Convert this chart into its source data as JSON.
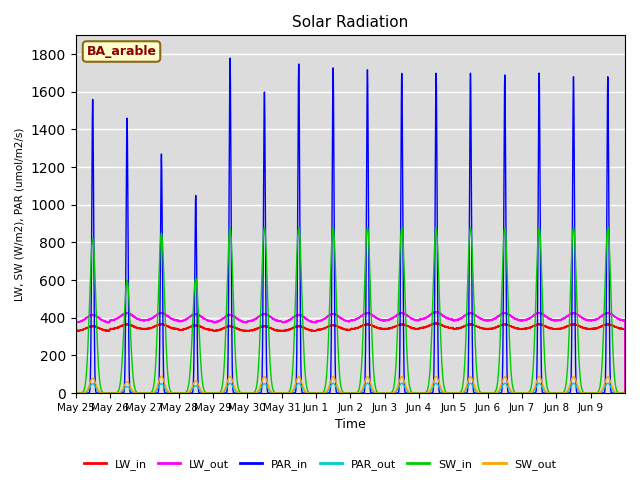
{
  "title": "Solar Radiation",
  "ylabel": "LW, SW (W/m2), PAR (umol/m2/s)",
  "xlabel": "Time",
  "annotation": "BA_arable",
  "annotation_color": "#8B0000",
  "annotation_bg": "#FFFFCC",
  "annotation_edge": "#8B6914",
  "ylim": [
    0,
    1900
  ],
  "yticks": [
    0,
    200,
    400,
    600,
    800,
    1000,
    1200,
    1400,
    1600,
    1800
  ],
  "n_days": 16,
  "series": {
    "LW_in": {
      "color": "#FF0000",
      "lw": 1.0
    },
    "LW_out": {
      "color": "#FF00FF",
      "lw": 1.0
    },
    "PAR_in": {
      "color": "#0000FF",
      "lw": 1.0
    },
    "PAR_out": {
      "color": "#00CCCC",
      "lw": 1.0
    },
    "SW_in": {
      "color": "#00CC00",
      "lw": 1.0
    },
    "SW_out": {
      "color": "#FFA500",
      "lw": 1.0
    }
  },
  "legend_order": [
    "LW_in",
    "LW_out",
    "PAR_in",
    "PAR_out",
    "SW_in",
    "SW_out"
  ],
  "xtick_labels": [
    "May 25",
    "May 26",
    "May 27",
    "May 28",
    "May 29",
    "May 30",
    "May 31",
    "Jun 1",
    "Jun 2",
    "Jun 3",
    "Jun 4",
    "Jun 5",
    "Jun 6",
    "Jun 7",
    "Jun 8",
    "Jun 9"
  ],
  "background_color": "#DCDCDC",
  "grid_color": "#FFFFFF",
  "fig_bg": "#FFFFFF",
  "par_peaks": [
    1560,
    1460,
    1270,
    1050,
    1780,
    1600,
    1750,
    1730,
    1720,
    1700,
    1700,
    1700,
    1690,
    1700,
    1680,
    1680
  ],
  "sw_peaks": [
    820,
    600,
    850,
    610,
    880,
    880,
    880,
    880,
    880,
    880,
    880,
    880,
    880,
    880,
    880,
    880
  ],
  "sw_out_peaks": [
    80,
    60,
    90,
    65,
    90,
    88,
    88,
    88,
    88,
    88,
    88,
    88,
    88,
    88,
    88,
    88
  ],
  "par_out_peaks": [
    50,
    35,
    50,
    40,
    52,
    50,
    52,
    52,
    52,
    52,
    52,
    52,
    52,
    52,
    52,
    52
  ],
  "lw_in_base": [
    330,
    340,
    340,
    335,
    330,
    330,
    330,
    335,
    340,
    340,
    345,
    340,
    340,
    340,
    340,
    340
  ],
  "lw_out_base": [
    375,
    385,
    385,
    380,
    375,
    380,
    375,
    380,
    385,
    385,
    390,
    385,
    385,
    385,
    385,
    385
  ]
}
